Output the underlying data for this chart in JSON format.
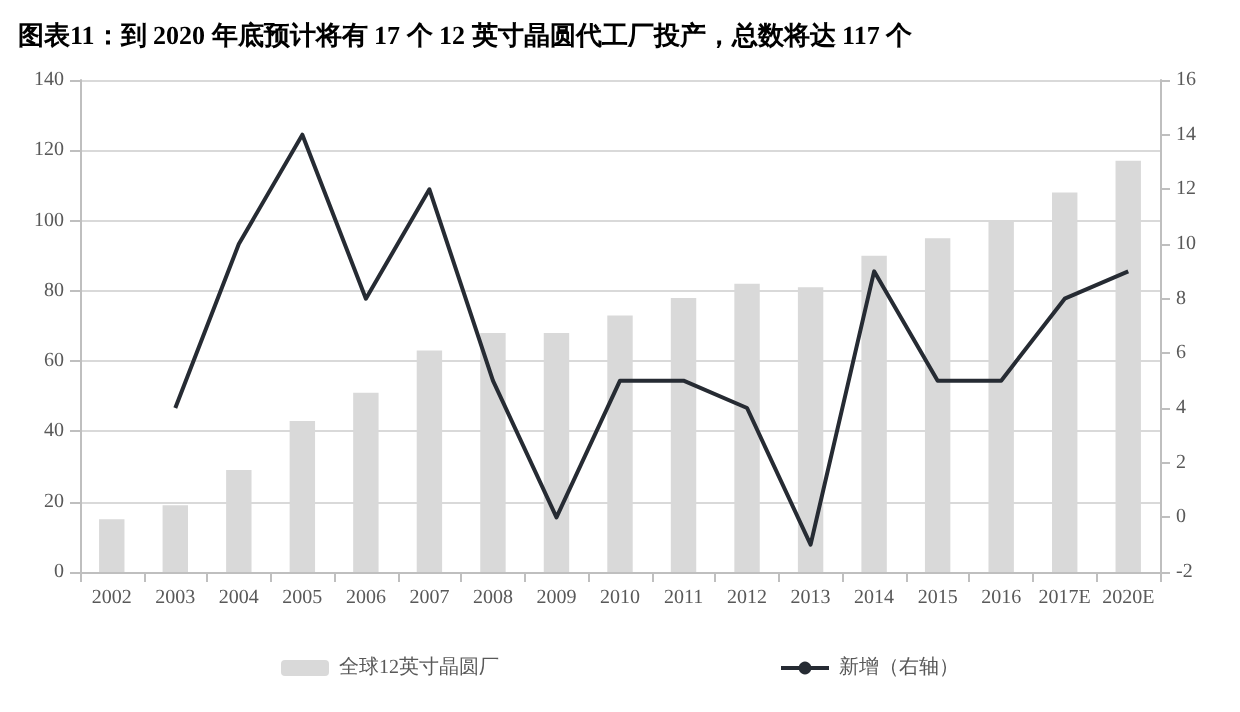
{
  "chart_data": {
    "type": "bar",
    "title": "图表11：到 2020 年底预计将有 17 个 12 英寸晶圆代工厂投产，总数将达 117 个",
    "categories": [
      "2002",
      "2003",
      "2004",
      "2005",
      "2006",
      "2007",
      "2008",
      "2009",
      "2010",
      "2011",
      "2012",
      "2013",
      "2014",
      "2015",
      "2016",
      "2017E",
      "2020E"
    ],
    "series": [
      {
        "name": "全球12英寸晶圆厂",
        "color": "#d9d9d9",
        "values": [
          15,
          19,
          29,
          43,
          51,
          63,
          68,
          68,
          73,
          78,
          82,
          81,
          90,
          95,
          100,
          108,
          117
        ]
      },
      {
        "name": "新增（右轴）",
        "type": "line",
        "axis": "y2",
        "color": "#262b33",
        "values": [
          null,
          4,
          10,
          14,
          8,
          12,
          5,
          0,
          5,
          5,
          4,
          -1,
          9,
          5,
          5,
          8,
          9
        ]
      }
    ],
    "ylim": [
      0,
      140
    ],
    "yticks": [
      0,
      20,
      40,
      60,
      80,
      100,
      120,
      140
    ],
    "y2lim": [
      -2,
      16
    ],
    "y2ticks": [
      -2,
      0,
      2,
      4,
      6,
      8,
      10,
      12,
      14,
      16
    ],
    "grid": "y",
    "legend": "bottom",
    "marker": "none",
    "line_style": "solid"
  }
}
